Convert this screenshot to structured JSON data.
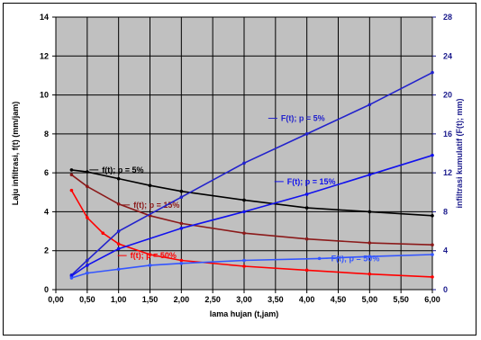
{
  "chart_data": {
    "type": "line",
    "xlabel": "lama hujan (t,jam)",
    "ylabel_left": "Laju infiltrasi, f(t) (mm/jam)",
    "ylabel_right": "infiltrasi kumulatif (F(t); mm)",
    "xlim": [
      0,
      6
    ],
    "ylim_left": [
      0,
      14
    ],
    "ylim_right": [
      0,
      28
    ],
    "grid": true,
    "x_tick_labels": [
      "0,00",
      "0,50",
      "1,00",
      "1,50",
      "2,00",
      "2,50",
      "3,00",
      "3,50",
      "4,00",
      "4,50",
      "5,00",
      "5,50",
      "6,00"
    ],
    "y_left_tick_labels": [
      "0",
      "2",
      "4",
      "6",
      "8",
      "10",
      "12",
      "14"
    ],
    "y_right_tick_labels": [
      "0",
      "4",
      "8",
      "12",
      "16",
      "20",
      "24",
      "28"
    ],
    "series": [
      {
        "name": "f(t); p = 5%",
        "axis": "left",
        "color": "#000000",
        "x": [
          0.25,
          0.5,
          1,
          1.5,
          2,
          3,
          4,
          5,
          6
        ],
        "y": [
          6.15,
          6.05,
          5.7,
          5.35,
          5.05,
          4.6,
          4.2,
          4.0,
          3.8
        ]
      },
      {
        "name": "f(t); p = 15%",
        "axis": "left",
        "color": "#8b1a1a",
        "x": [
          0.25,
          0.5,
          1,
          1.5,
          2,
          3,
          4,
          5,
          6
        ],
        "y": [
          5.9,
          5.3,
          4.4,
          3.8,
          3.4,
          2.9,
          2.6,
          2.4,
          2.3
        ]
      },
      {
        "name": "f(t); p = 50%",
        "axis": "left",
        "color": "#ff0000",
        "x": [
          0.25,
          0.5,
          0.75,
          1,
          1.5,
          2,
          3,
          4,
          5,
          6
        ],
        "y": [
          5.1,
          3.7,
          2.9,
          2.35,
          1.8,
          1.5,
          1.2,
          1.0,
          0.8,
          0.65
        ]
      },
      {
        "name": "F(t); p = 5%",
        "axis": "right",
        "color": "#2222cc",
        "x": [
          0.25,
          0.5,
          1,
          2,
          3,
          4,
          5,
          6
        ],
        "y": [
          1.5,
          3.0,
          6.0,
          9.5,
          13.0,
          16.0,
          19.0,
          22.3
        ]
      },
      {
        "name": "F(t); p = 15%",
        "axis": "right",
        "color": "#1111ee",
        "x": [
          0.25,
          0.5,
          1,
          2,
          3,
          4,
          5,
          6
        ],
        "y": [
          1.4,
          2.5,
          4.2,
          6.3,
          8.0,
          9.8,
          11.8,
          13.8
        ]
      },
      {
        "name": "F(t); p = 50%",
        "axis": "right",
        "color": "#3355ff",
        "x": [
          0.25,
          0.5,
          1,
          1.5,
          2,
          3,
          4.2,
          5,
          6
        ],
        "y": [
          1.2,
          1.7,
          2.1,
          2.5,
          2.7,
          3.0,
          3.2,
          3.4,
          3.6
        ]
      }
    ]
  }
}
